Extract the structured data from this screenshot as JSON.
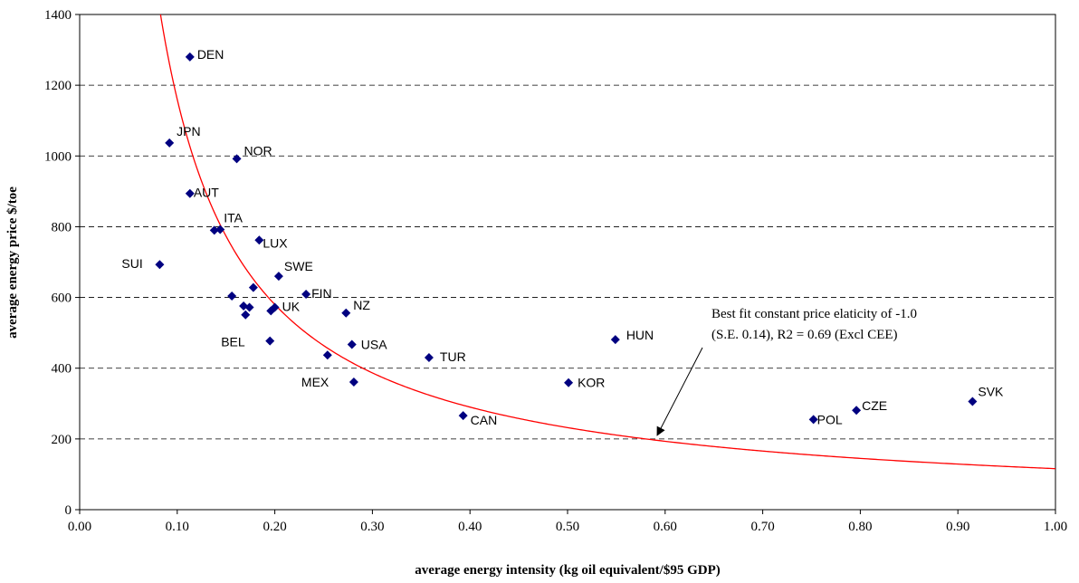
{
  "chart_data": {
    "type": "scatter",
    "title": "",
    "xlabel": "average energy intensity (kg oil equivalent/$95 GDP)",
    "ylabel": "average energy price $/toe",
    "xlim": [
      0,
      1.0
    ],
    "ylim": [
      0,
      1400
    ],
    "x_ticks": [
      "0.00",
      "0.10",
      "0.20",
      "0.30",
      "0.40",
      "0.50",
      "0.60",
      "0.70",
      "0.80",
      "0.90",
      "1.00"
    ],
    "y_ticks": [
      "0",
      "200",
      "400",
      "600",
      "800",
      "1000",
      "1200",
      "1400"
    ],
    "grid": "horizontal dashed",
    "marker_color": "#000080",
    "curve_color": "#ff0000",
    "points": [
      {
        "label": "DEN",
        "x": 0.113,
        "y": 1280
      },
      {
        "label": "JPN",
        "x": 0.092,
        "y": 1037
      },
      {
        "label": "NOR",
        "x": 0.161,
        "y": 992
      },
      {
        "label": "AUT",
        "x": 0.113,
        "y": 894
      },
      {
        "label": "ITA",
        "x": 0.144,
        "y": 792
      },
      {
        "label": "",
        "x": 0.138,
        "y": 790
      },
      {
        "label": "LUX",
        "x": 0.184,
        "y": 762
      },
      {
        "label": "SUI",
        "x": 0.082,
        "y": 693
      },
      {
        "label": "SWE",
        "x": 0.204,
        "y": 660
      },
      {
        "label": "",
        "x": 0.178,
        "y": 628
      },
      {
        "label": "FIN",
        "x": 0.232,
        "y": 609
      },
      {
        "label": "",
        "x": 0.156,
        "y": 604
      },
      {
        "label": "",
        "x": 0.168,
        "y": 576
      },
      {
        "label": "",
        "x": 0.174,
        "y": 572
      },
      {
        "label": "UK",
        "x": 0.2,
        "y": 572
      },
      {
        "label": "",
        "x": 0.196,
        "y": 562
      },
      {
        "label": "NZ",
        "x": 0.273,
        "y": 556
      },
      {
        "label": "",
        "x": 0.17,
        "y": 551
      },
      {
        "label": "HUN",
        "x": 0.549,
        "y": 481
      },
      {
        "label": "BEL",
        "x": 0.195,
        "y": 477
      },
      {
        "label": "USA",
        "x": 0.279,
        "y": 467
      },
      {
        "label": "",
        "x": 0.254,
        "y": 437
      },
      {
        "label": "TUR",
        "x": 0.358,
        "y": 430
      },
      {
        "label": "MEX",
        "x": 0.281,
        "y": 361
      },
      {
        "label": "KOR",
        "x": 0.501,
        "y": 359
      },
      {
        "label": "SVK",
        "x": 0.915,
        "y": 306
      },
      {
        "label": "CZE",
        "x": 0.796,
        "y": 281
      },
      {
        "label": "CAN",
        "x": 0.393,
        "y": 266
      },
      {
        "label": "POL",
        "x": 0.752,
        "y": 255
      }
    ],
    "fit_curve": {
      "type": "constant-elasticity",
      "elasticity": -1.0,
      "k": 116
    },
    "annotation": {
      "lines": [
        "Best fit constant price elaticity of -1.0",
        "(S.E. 0.14), R2 = 0.69 (Excl CEE)"
      ],
      "arrow_to": {
        "x": 0.59,
        "y": 200
      }
    }
  }
}
